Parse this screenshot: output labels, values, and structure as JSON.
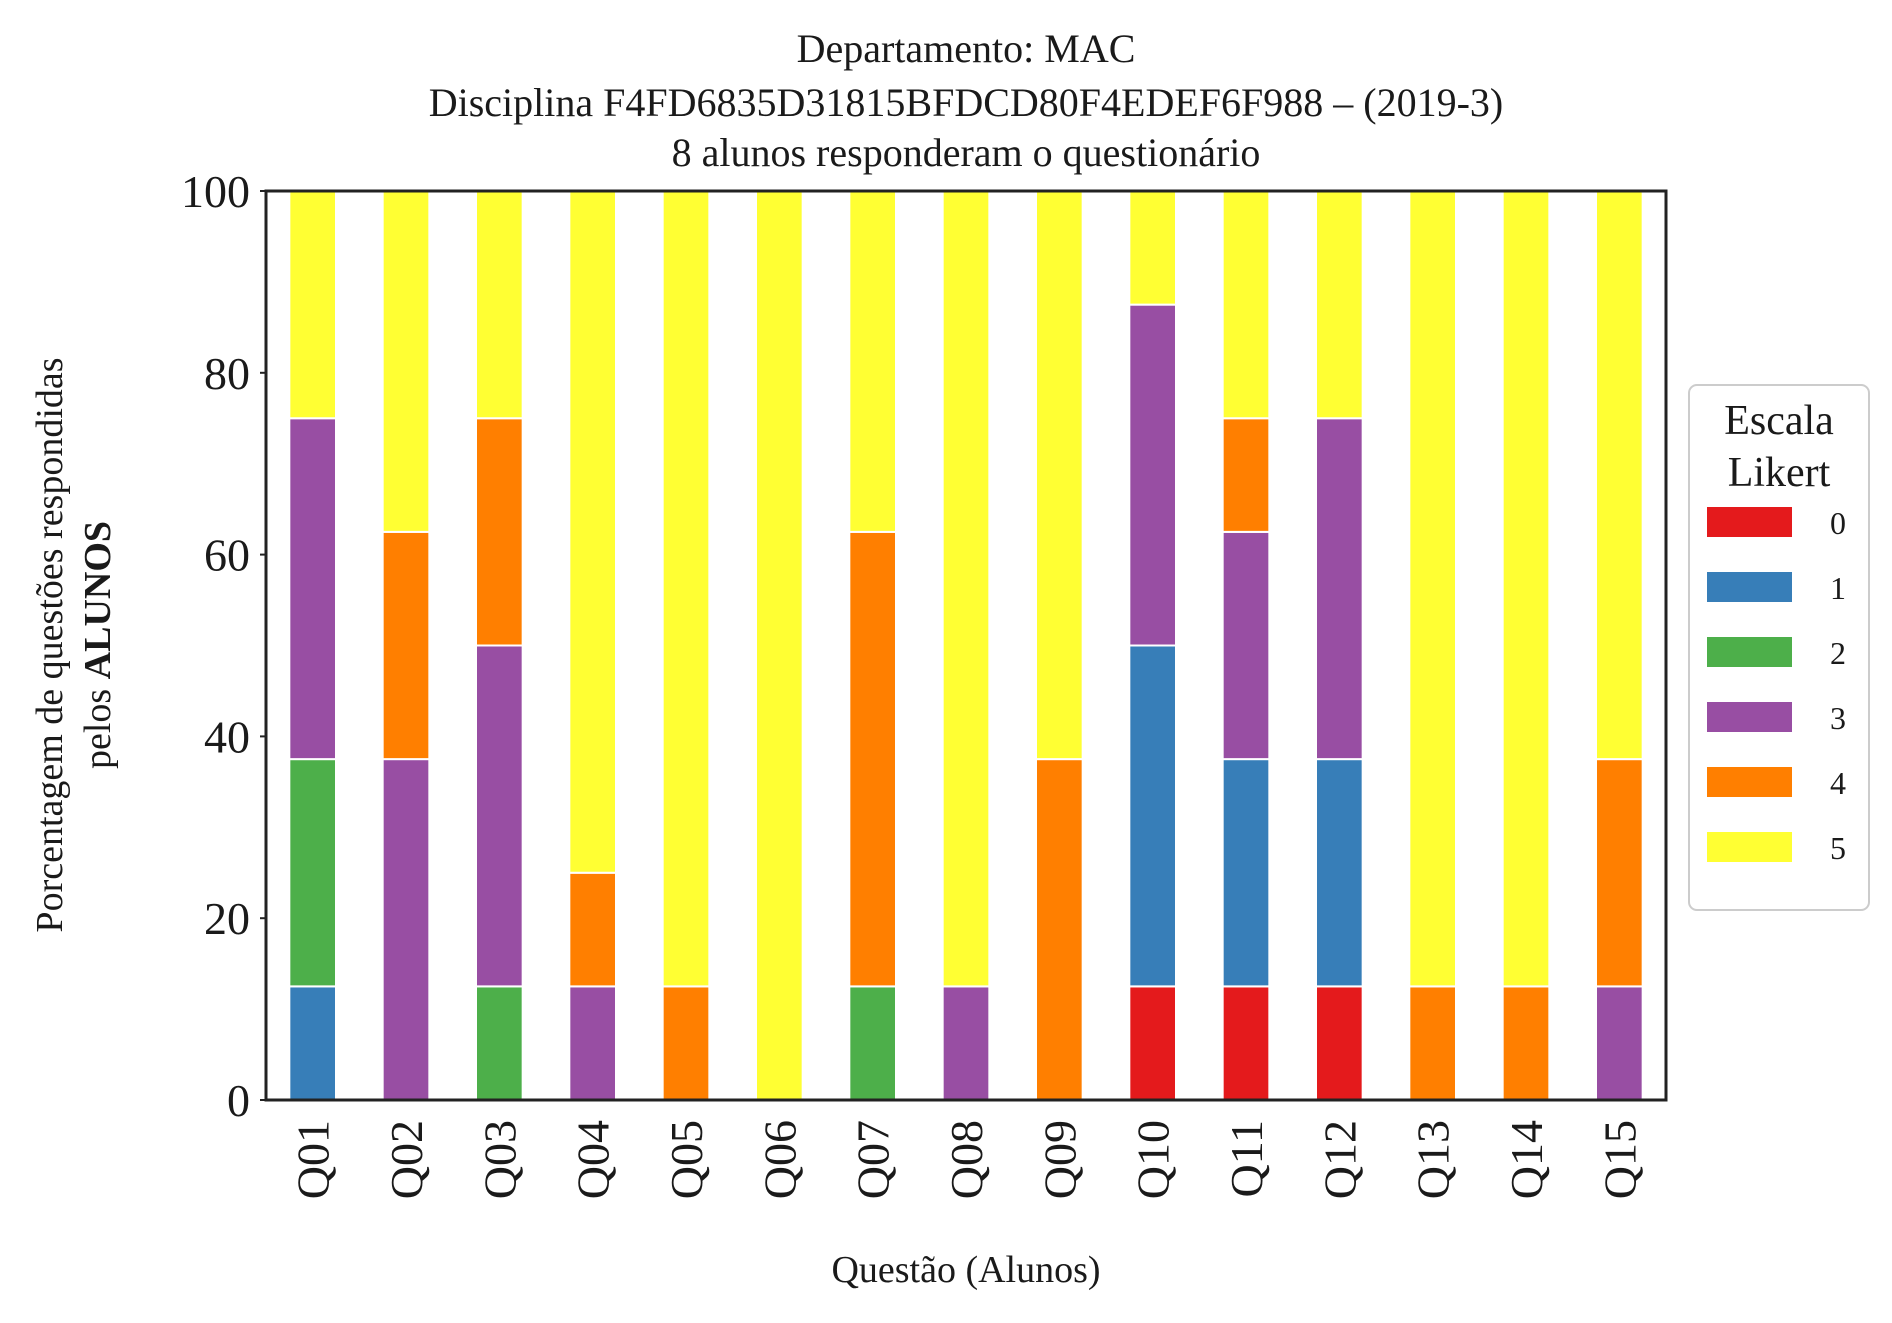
{
  "chart_data": {
    "type": "bar",
    "stacked": true,
    "title_lines": [
      "Departamento: MAC",
      "Disciplina F4FD6835D31815BFDCD80F4EDEF6F988 – (2019-3)",
      "8 alunos responderam o questionário"
    ],
    "xlabel": "Questão (Alunos)",
    "ylabel_line1": "Porcentagem de questões respondidas",
    "ylabel_line2_prefix": "pelos ",
    "ylabel_line2_bold": "ALUNOS",
    "ylim": [
      0,
      100
    ],
    "yticks": [
      "0",
      "20",
      "40",
      "60",
      "80",
      "100"
    ],
    "grid": false,
    "legend_position": "right",
    "legend_title_lines": [
      "Escala",
      "Likert"
    ],
    "categories": [
      "Q01",
      "Q02",
      "Q03",
      "Q04",
      "Q05",
      "Q06",
      "Q07",
      "Q08",
      "Q09",
      "Q10",
      "Q11",
      "Q12",
      "Q13",
      "Q14",
      "Q15"
    ],
    "series": [
      {
        "name": "0",
        "color": "#e41a1c",
        "values": [
          0,
          0,
          0,
          0,
          0,
          0,
          0,
          0,
          0,
          12.5,
          12.5,
          12.5,
          0,
          0,
          0
        ]
      },
      {
        "name": "1",
        "color": "#377eb8",
        "values": [
          12.5,
          0,
          0,
          0,
          0,
          0,
          0,
          0,
          0,
          37.5,
          25,
          25,
          0,
          0,
          0
        ]
      },
      {
        "name": "2",
        "color": "#4daf4a",
        "values": [
          25,
          0,
          12.5,
          0,
          0,
          0,
          12.5,
          0,
          0,
          0,
          0,
          0,
          0,
          0,
          0
        ]
      },
      {
        "name": "3",
        "color": "#984ea3",
        "values": [
          37.5,
          37.5,
          37.5,
          12.5,
          0,
          0,
          0,
          12.5,
          0,
          37.5,
          25,
          37.5,
          0,
          0,
          12.5
        ]
      },
      {
        "name": "4",
        "color": "#ff7f00",
        "values": [
          0,
          25,
          25,
          12.5,
          12.5,
          0,
          50,
          0,
          37.5,
          0,
          12.5,
          0,
          12.5,
          12.5,
          25
        ]
      },
      {
        "name": "5",
        "color": "#ffff33",
        "values": [
          25,
          37.5,
          25,
          75,
          87.5,
          100,
          37.5,
          87.5,
          62.5,
          12.5,
          25,
          25,
          87.5,
          87.5,
          62.5
        ]
      }
    ]
  }
}
